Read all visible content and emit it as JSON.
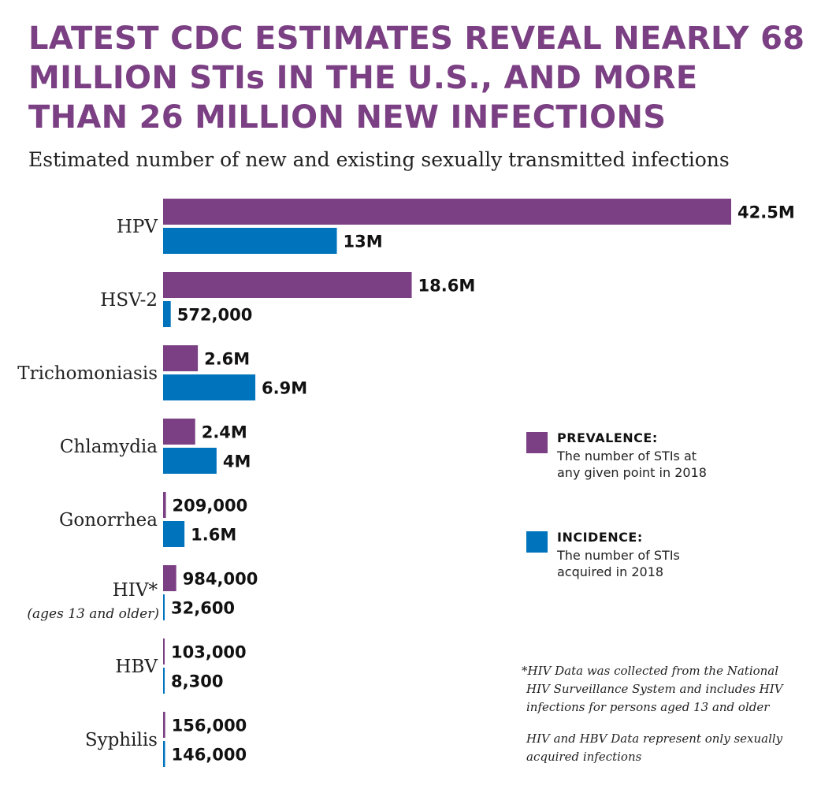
{
  "title": "LATEST CDC ESTIMATES REVEAL NEARLY 68 MILLION STIs IN THE U.S., AND MORE THAN 26 MILLION NEW INFECTIONS",
  "subtitle": "Estimated number of new and existing sexually transmitted infections",
  "colors": {
    "prevalence": "#7b3f83",
    "incidence": "#0073bd",
    "title": "#7b3f83"
  },
  "legend": {
    "prevalence": {
      "title": "PREVALENCE:",
      "desc": "The number of STIs at any given point in 2018"
    },
    "incidence": {
      "title": "INCIDENCE:",
      "desc": "The number of STIs acquired in 2018"
    }
  },
  "notes": {
    "hiv_line1": "*HIV Data was collected from the National",
    "hiv_line2": "HIV Surveillance System and includes HIV",
    "hiv_line3": "infections for persons aged 13 and older",
    "sexual_line1": "HIV and HBV Data represent only sexually",
    "sexual_line2": "acquired infections"
  },
  "chart_data": {
    "type": "bar",
    "orientation": "horizontal",
    "title": "LATEST CDC ESTIMATES REVEAL NEARLY 68 MILLION STIs IN THE U.S., AND MORE THAN 26 MILLION NEW INFECTIONS",
    "subtitle": "Estimated number of new and existing sexually transmitted infections",
    "categories": [
      "HPV",
      "HSV-2",
      "Trichomoniasis",
      "Chlamydia",
      "Gonorrhea",
      "HIV*",
      "HBV",
      "Syphilis"
    ],
    "category_sublabels": [
      "",
      "",
      "",
      "",
      "",
      "(ages 13 and older)",
      "",
      ""
    ],
    "legend_position": "right",
    "grid": false,
    "series": [
      {
        "name": "PREVALENCE:",
        "values": [
          42500000,
          18600000,
          2600000,
          2400000,
          209000,
          984000,
          103000,
          156000
        ],
        "labels": [
          "42.5M",
          "18.6M",
          "2.6M",
          "2.4M",
          "209,000",
          "984,000",
          "103,000",
          "156,000"
        ]
      },
      {
        "name": "INCIDENCE:",
        "values": [
          13000000,
          572000,
          6900000,
          4000000,
          1600000,
          32600,
          8300,
          146000
        ],
        "labels": [
          "13M",
          "572,000",
          "6.9M",
          "4M",
          "1.6M",
          "32,600",
          "8,300",
          "146,000"
        ]
      }
    ]
  }
}
